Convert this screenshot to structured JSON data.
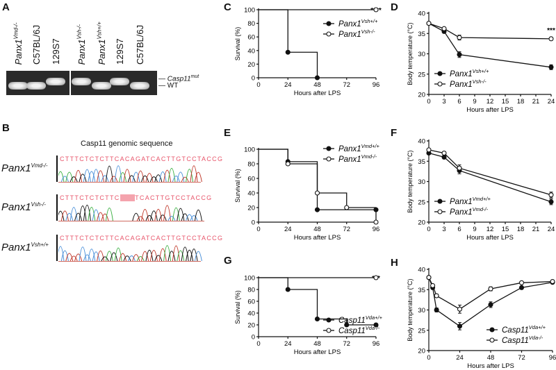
{
  "panels": {
    "A": "A",
    "B": "B",
    "C": "C",
    "D": "D",
    "E": "E",
    "F": "F",
    "G": "G",
    "H": "H"
  },
  "gel": {
    "lanes": [
      {
        "base": "Panx1",
        "sup": "Vmd-/-",
        "italic": true
      },
      {
        "base": "C57BL/6J",
        "sup": "",
        "italic": false
      },
      {
        "base": "129S7",
        "sup": "",
        "italic": false
      },
      {
        "base": "Panx1",
        "sup": "Vsh-/-",
        "italic": true
      },
      {
        "base": "Panx1",
        "sup": "Vsh+/+",
        "italic": true
      },
      {
        "base": "129S7",
        "sup": "",
        "italic": false
      },
      {
        "base": "C57BL/6J",
        "sup": "",
        "italic": false
      }
    ],
    "band_type": [
      "WT",
      "WT",
      "mut",
      "mut",
      "WT",
      "mut",
      "WT"
    ],
    "marker_mut": {
      "base": "Casp11",
      "sup": "mut"
    },
    "marker_wt": "WT"
  },
  "sequencing": {
    "title": "Casp11 genomic sequence",
    "rows": [
      {
        "base": "Panx1",
        "sup": "Vmd-/-",
        "seq": "CTTTCTCTCTTCACAGATCACTTGTCCTACCG",
        "gap": false
      },
      {
        "base": "Panx1",
        "sup": "Vsh-/-",
        "seq_pre": "CTTTCTCTCTTC",
        "seq_del": "-----",
        "seq_post": "TCACTTGTCCTACCG",
        "gap": true
      },
      {
        "base": "Panx1",
        "sup": "Vsh+/+",
        "seq": "CTTTCTCTCTTCACAGATCACTTGTCCTACCG",
        "gap": false
      }
    ],
    "trace_colors": [
      "#4a90d9",
      "#c0392b",
      "#3cb043",
      "#111111"
    ]
  },
  "chart_data": [
    {
      "id": "C",
      "type": "line",
      "step": true,
      "ylabel": "Survival (%)",
      "xlabel": "Hours after LPS",
      "xlim": [
        0,
        96
      ],
      "ylim": [
        0,
        100
      ],
      "xticks": [
        0,
        24,
        48,
        72,
        96
      ],
      "yticks": [
        0,
        20,
        40,
        60,
        80,
        100
      ],
      "annotation": "****",
      "legend_position": "right",
      "series": [
        {
          "name": "Panx1",
          "sup": "Vsh+/+",
          "filled": true,
          "x": [
            0,
            24,
            48
          ],
          "y": [
            100,
            37.5,
            0
          ]
        },
        {
          "name": "Panx1",
          "sup": "Vsh-/-",
          "filled": false,
          "x": [
            0,
            96
          ],
          "y": [
            100,
            100
          ]
        }
      ]
    },
    {
      "id": "D",
      "type": "line",
      "step": false,
      "ylabel": "Body temperature (°C)",
      "xlabel": "Hours after LPS",
      "xlim": [
        0,
        24
      ],
      "ylim": [
        20,
        40
      ],
      "xticks": [
        0,
        3,
        6,
        9,
        12,
        15,
        18,
        21,
        24
      ],
      "yticks": [
        20,
        25,
        30,
        35,
        40
      ],
      "annotation": "***",
      "legend_position": "bottom-left",
      "series": [
        {
          "name": "Panx1",
          "sup": "Vsh+/+",
          "filled": true,
          "x": [
            0,
            3,
            6,
            24
          ],
          "y": [
            37.5,
            35.5,
            29.8,
            26.7
          ],
          "err": [
            0.3,
            0.4,
            0.7,
            0.6
          ]
        },
        {
          "name": "Panx1",
          "sup": "Vsh-/-",
          "filled": false,
          "x": [
            0,
            3,
            6,
            24
          ],
          "y": [
            37.5,
            36.2,
            34,
            33.7
          ],
          "err": [
            0.3,
            0.3,
            0.6,
            0.4
          ]
        }
      ]
    },
    {
      "id": "E",
      "type": "line",
      "step": true,
      "ylabel": "Survival (%)",
      "xlabel": "Hours after LPS",
      "xlim": [
        0,
        96
      ],
      "ylim": [
        0,
        100
      ],
      "xticks": [
        0,
        24,
        48,
        72,
        96
      ],
      "yticks": [
        0,
        20,
        40,
        60,
        80,
        100
      ],
      "annotation": "",
      "legend_position": "top-right",
      "series": [
        {
          "name": "Panx1",
          "sup": "Vmd+/+",
          "filled": true,
          "x": [
            0,
            24,
            48,
            96
          ],
          "y": [
            100,
            83,
            17,
            17
          ]
        },
        {
          "name": "Panx1",
          "sup": "Vmd-/-",
          "filled": false,
          "x": [
            0,
            24,
            48,
            72,
            96
          ],
          "y": [
            100,
            80,
            40,
            20,
            0
          ]
        }
      ]
    },
    {
      "id": "F",
      "type": "line",
      "step": false,
      "ylabel": "Body temperature (°C)",
      "xlabel": "Hours after LPS",
      "xlim": [
        0,
        24
      ],
      "ylim": [
        20,
        40
      ],
      "xticks": [
        0,
        3,
        6,
        9,
        12,
        15,
        18,
        21,
        24
      ],
      "yticks": [
        20,
        25,
        30,
        35,
        40
      ],
      "annotation": "",
      "legend_position": "bottom-left",
      "series": [
        {
          "name": "Panx1",
          "sup": "Vmd+/+",
          "filled": true,
          "x": [
            0,
            3,
            6,
            24
          ],
          "y": [
            37,
            36,
            32.7,
            25
          ],
          "err": [
            0.3,
            0.4,
            0.8,
            0.7
          ]
        },
        {
          "name": "Panx1",
          "sup": "Vmd-/-",
          "filled": false,
          "x": [
            0,
            3,
            6,
            24
          ],
          "y": [
            37.8,
            37,
            33.3,
            26.7
          ],
          "err": [
            0.3,
            0.3,
            0.8,
            0.7
          ]
        }
      ]
    },
    {
      "id": "G",
      "type": "line",
      "step": true,
      "ylabel": "Survival (%)",
      "xlabel": "Hours after LPS",
      "xlim": [
        0,
        96
      ],
      "ylim": [
        0,
        100
      ],
      "xticks": [
        0,
        24,
        48,
        72,
        96
      ],
      "yticks": [
        0,
        20,
        40,
        60,
        80,
        100
      ],
      "annotation": "***",
      "legend_position": "right",
      "series": [
        {
          "name": "Casp11",
          "sup": "Vda+/+",
          "filled": true,
          "x": [
            0,
            24,
            48,
            72,
            96
          ],
          "y": [
            100,
            80,
            30,
            20,
            20
          ]
        },
        {
          "name": "Casp11",
          "sup": "Vda-/-",
          "filled": false,
          "x": [
            0,
            96
          ],
          "y": [
            100,
            100
          ]
        }
      ]
    },
    {
      "id": "H",
      "type": "line",
      "step": false,
      "ylabel": "Body temperature (°C)",
      "xlabel": "Hours after LPS",
      "xlim": [
        0,
        96
      ],
      "ylim": [
        20,
        40
      ],
      "xticks": [
        0,
        24,
        48,
        72,
        96
      ],
      "yticks": [
        20,
        25,
        30,
        35,
        40
      ],
      "annotation": "*",
      "legend_position": "bottom-right",
      "series": [
        {
          "name": "Casp11",
          "sup": "Vda+/+",
          "filled": true,
          "x": [
            0,
            3,
            6,
            24,
            48,
            72,
            96
          ],
          "y": [
            38,
            35.5,
            30,
            26,
            31.3,
            35.5,
            36.8
          ],
          "err": [
            0.3,
            0.4,
            0.5,
            0.9,
            0.7,
            0.4,
            0.3
          ]
        },
        {
          "name": "Casp11",
          "sup": "Vda-/-",
          "filled": false,
          "x": [
            0,
            3,
            6,
            24,
            48,
            72,
            96
          ],
          "y": [
            38,
            36,
            33.5,
            30.2,
            35.2,
            36.7,
            37
          ],
          "err": [
            0.3,
            0.3,
            0.4,
            1,
            0.5,
            0.3,
            0.3
          ]
        }
      ]
    }
  ]
}
